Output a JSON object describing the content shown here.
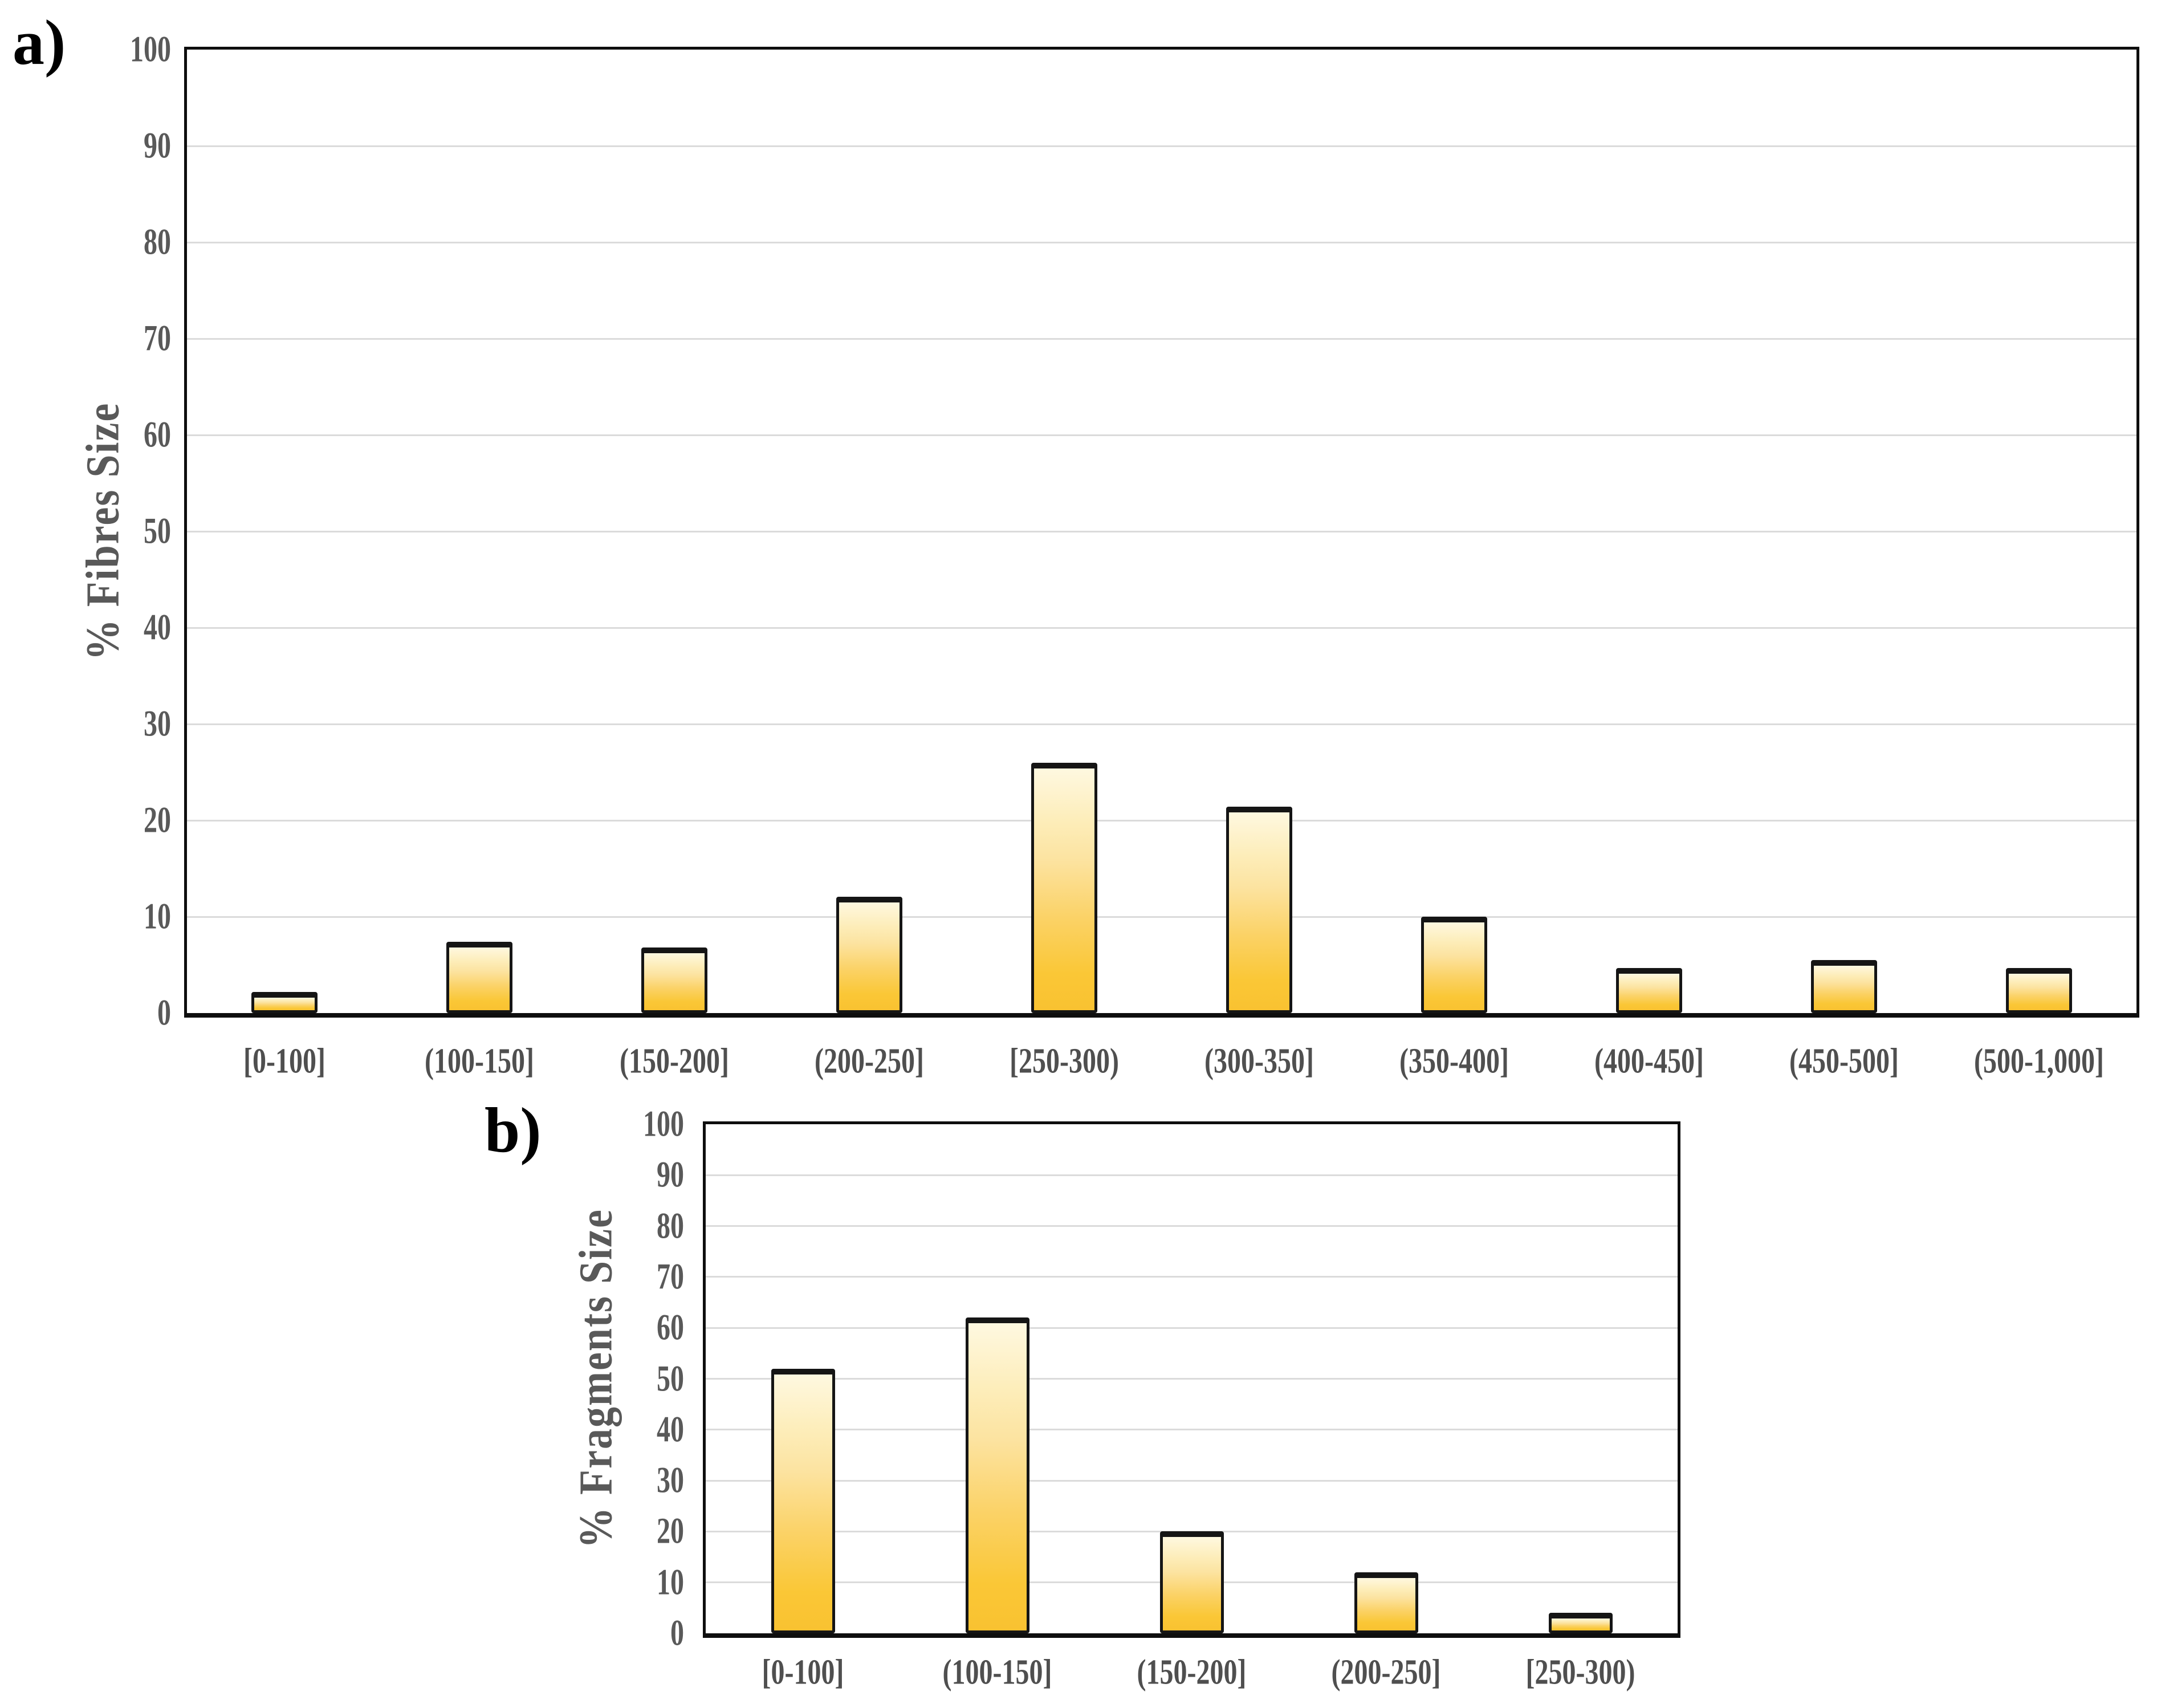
{
  "figure": {
    "background_color": "#ffffff",
    "gridline_color": "#dbdbdb",
    "frame_color": "#0e0e0e",
    "tick_label_color": "#595959",
    "category_label_color": "#4f4f4f",
    "bar_border_color": "#151515",
    "bar_gradient_top": "#fef8e0",
    "bar_gradient_bottom": "#f9c231"
  },
  "chart_data": [
    {
      "type": "bar",
      "panel_label": "a)",
      "title": "",
      "xlabel": "",
      "ylabel": "% Fibres Size",
      "categories": [
        "[0-100]",
        "(100-150]",
        "(150-200]",
        "(200-250]",
        "[250-300)",
        "(300-350]",
        "(350-400]",
        "(400-450]",
        "(450-500]",
        "(500-1,000]"
      ],
      "values": [
        2.2,
        7.4,
        6.8,
        12.1,
        26.0,
        21.4,
        10.0,
        4.7,
        5.5,
        4.7
      ],
      "ylim": [
        0,
        100
      ],
      "y_ticks": [
        0,
        10,
        20,
        30,
        40,
        50,
        60,
        70,
        80,
        90,
        100
      ],
      "grid": "horizontal",
      "legend": "none"
    },
    {
      "type": "bar",
      "panel_label": "b)",
      "title": "",
      "xlabel": "",
      "ylabel": "% Fragments Size",
      "categories": [
        "[0-100]",
        "(100-150]",
        "(150-200]",
        "(200-250]",
        "[250-300)"
      ],
      "values": [
        52,
        62,
        20,
        12,
        4
      ],
      "ylim": [
        0,
        100
      ],
      "y_ticks": [
        0,
        10,
        20,
        30,
        40,
        50,
        60,
        70,
        80,
        90,
        100
      ],
      "grid": "horizontal",
      "legend": "none"
    }
  ]
}
